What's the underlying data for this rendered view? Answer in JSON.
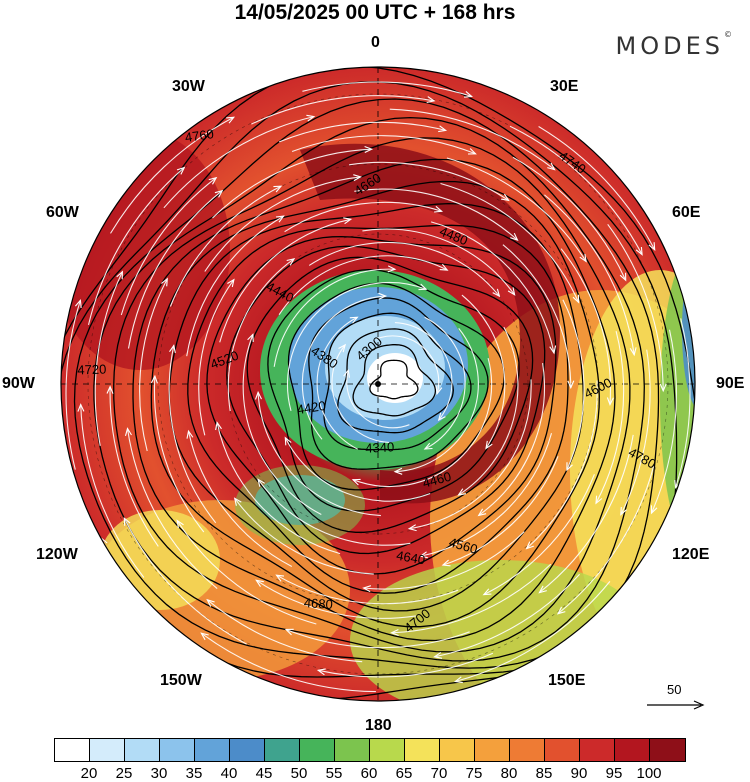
{
  "header": {
    "title": "14/05/2025  00 UTC  + 168 hrs",
    "brand": "MODES",
    "brand_mark": "©"
  },
  "longitude_labels": [
    "0",
    "30E",
    "60E",
    "90E",
    "120E",
    "150E",
    "180",
    "150W",
    "120W",
    "90W",
    "60W",
    "30W"
  ],
  "contour_labels": [
    "4300",
    "4340",
    "4380",
    "4420",
    "4440",
    "4460",
    "4480",
    "4520",
    "4560",
    "4600",
    "4640",
    "4660",
    "4680",
    "4700",
    "4720",
    "4740",
    "4760",
    "4780"
  ],
  "wind_scale": {
    "label": "50"
  },
  "colorbar": {
    "colors": [
      "#ffffff",
      "#d4ecfb",
      "#b2dcf6",
      "#8cc3ec",
      "#62a3d9",
      "#4c8cc9",
      "#3fa38e",
      "#46b45a",
      "#7cc44e",
      "#b8d94c",
      "#f4e25a",
      "#f7c64a",
      "#f4a03c",
      "#ee7b34",
      "#e2512e",
      "#cc2a2a",
      "#b3161f",
      "#8e0f18"
    ],
    "labels": [
      "20",
      "25",
      "30",
      "35",
      "40",
      "45",
      "50",
      "55",
      "60",
      "65",
      "70",
      "75",
      "80",
      "85",
      "90",
      "95",
      "100"
    ]
  }
}
